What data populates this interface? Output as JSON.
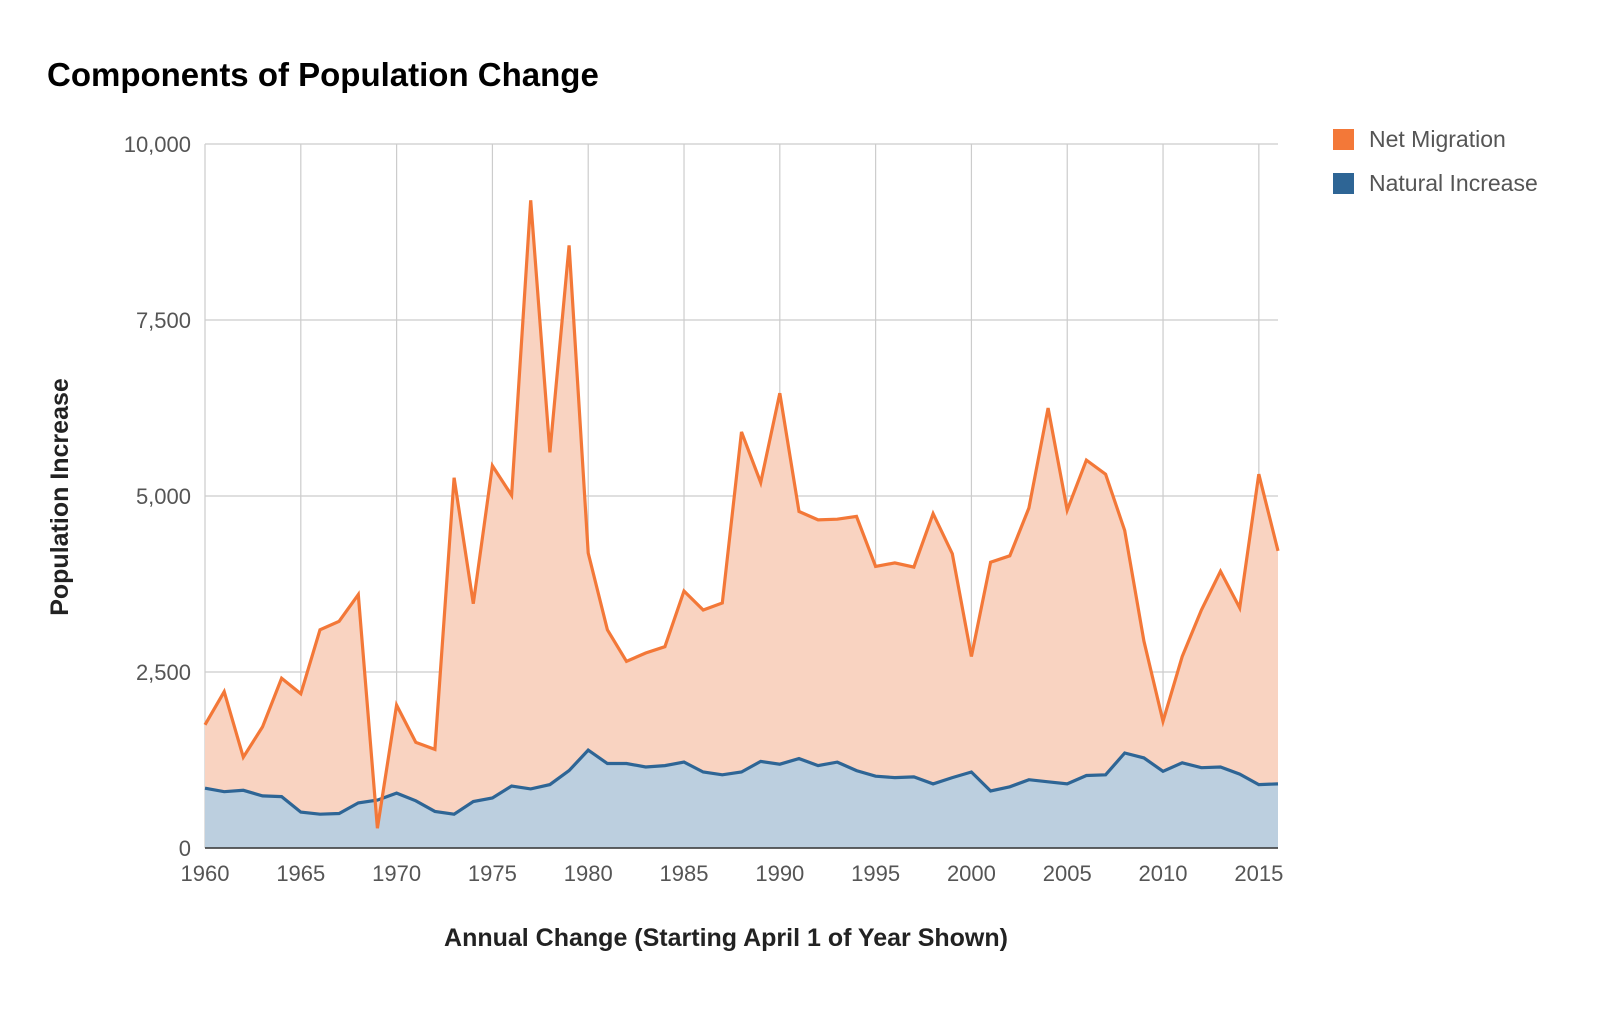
{
  "chart_data": {
    "type": "area",
    "stacked": true,
    "title": "Components of Population Change",
    "xlabel": "Annual Change (Starting April 1 of Year Shown)",
    "ylabel": "Population Increase",
    "xlim": [
      1960,
      2016
    ],
    "ylim": [
      0,
      10000
    ],
    "yticks": [
      0,
      2500,
      5000,
      7500,
      10000
    ],
    "ytick_labels": [
      "0",
      "2,500",
      "5,000",
      "7,500",
      "10,000"
    ],
    "xticks": [
      1960,
      1965,
      1970,
      1975,
      1980,
      1985,
      1990,
      1995,
      2000,
      2005,
      2010,
      2015
    ],
    "xtick_labels": [
      "1960",
      "1965",
      "1970",
      "1975",
      "1980",
      "1985",
      "1990",
      "1995",
      "2000",
      "2005",
      "2010",
      "2015"
    ],
    "grid": true,
    "legend_position": "right",
    "x": [
      1960,
      1961,
      1962,
      1963,
      1964,
      1965,
      1966,
      1967,
      1968,
      1969,
      1970,
      1971,
      1972,
      1973,
      1974,
      1975,
      1976,
      1977,
      1978,
      1979,
      1980,
      1981,
      1982,
      1983,
      1984,
      1985,
      1986,
      1987,
      1988,
      1989,
      1990,
      1991,
      1992,
      1993,
      1994,
      1995,
      1996,
      1997,
      1998,
      1999,
      2000,
      2001,
      2002,
      2003,
      2004,
      2005,
      2006,
      2007,
      2008,
      2009,
      2010,
      2011,
      2012,
      2013,
      2014,
      2015,
      2016
    ],
    "series": [
      {
        "name": "Natural Increase",
        "color": "#2e6595",
        "fill": "#bccfdf",
        "values": [
          850,
          800,
          820,
          740,
          730,
          510,
          480,
          490,
          640,
          680,
          780,
          670,
          520,
          480,
          660,
          710,
          880,
          840,
          900,
          1100,
          1390,
          1200,
          1200,
          1150,
          1170,
          1220,
          1080,
          1040,
          1080,
          1230,
          1190,
          1270,
          1170,
          1220,
          1100,
          1020,
          1000,
          1010,
          910,
          1000,
          1080,
          810,
          870,
          970,
          940,
          910,
          1030,
          1040,
          1350,
          1280,
          1090,
          1210,
          1140,
          1150,
          1050,
          900,
          910
        ]
      },
      {
        "name": "Net Migration",
        "color": "#f37838",
        "fill": "#f9d3c1",
        "values": [
          900,
          1420,
          470,
          980,
          1680,
          1680,
          2620,
          2730,
          2960,
          -400,
          1250,
          830,
          880,
          4780,
          2810,
          4720,
          4130,
          8360,
          4720,
          7460,
          2800,
          1900,
          1450,
          1620,
          1690,
          2430,
          2300,
          2440,
          4830,
          3960,
          5270,
          3510,
          3490,
          3450,
          3610,
          2980,
          3050,
          2980,
          3840,
          3180,
          1640,
          3250,
          3280,
          3860,
          5310,
          3890,
          4480,
          4270,
          3160,
          1660,
          710,
          1510,
          2240,
          2780,
          2360,
          4410,
          3310
        ]
      }
    ]
  }
}
